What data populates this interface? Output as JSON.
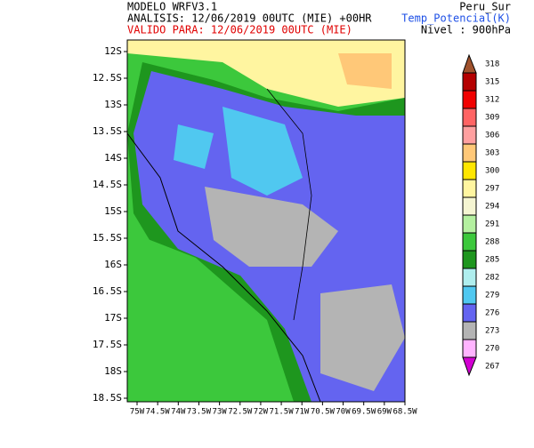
{
  "header": {
    "model": "MODELO WRFV3.1",
    "analysis": "ANALISIS: 12/06/2019 00UTC (MIE) +00HR",
    "valid": "VALIDO PARA: 12/06/2019 00UTC (MIE)",
    "region": "Peru_Sur",
    "variable": "Temp_Potencial(K)",
    "level": "Nivel : 900hPa"
  },
  "map": {
    "lat_labels": [
      "12S",
      "12.5S",
      "13S",
      "13.5S",
      "14S",
      "14.5S",
      "15S",
      "15.5S",
      "16S",
      "16.5S",
      "17S",
      "17.5S",
      "18S",
      "18.5S"
    ],
    "lon_labels": [
      "75W",
      "74.5W",
      "74W",
      "73.5W",
      "73W",
      "72.5W",
      "72W",
      "71.5W",
      "71W",
      "70.5W",
      "70W",
      "69.5W",
      "69W",
      "68.5W"
    ]
  },
  "colorbar": {
    "levels": [
      {
        "label": 318,
        "color": "#a0522d"
      },
      {
        "label": 315,
        "color": "#b40000"
      },
      {
        "label": 312,
        "color": "#f00000"
      },
      {
        "label": 309,
        "color": "#ff6464"
      },
      {
        "label": 306,
        "color": "#ffa0a0"
      },
      {
        "label": 303,
        "color": "#ffc878"
      },
      {
        "label": 300,
        "color": "#ffe600"
      },
      {
        "label": 297,
        "color": "#fff5a0"
      },
      {
        "label": 294,
        "color": "#f5f5d2"
      },
      {
        "label": 291,
        "color": "#b4f0a0"
      },
      {
        "label": 288,
        "color": "#3cc83c"
      },
      {
        "label": 285,
        "color": "#1e961e"
      },
      {
        "label": 282,
        "color": "#afeeee"
      },
      {
        "label": 279,
        "color": "#50c8f0"
      },
      {
        "label": 276,
        "color": "#6464f0"
      },
      {
        "label": 273,
        "color": "#b4b4b4"
      },
      {
        "label": 270,
        "color": "#ffb4ff"
      },
      {
        "label": 267,
        "color": "#d200d2"
      }
    ]
  }
}
